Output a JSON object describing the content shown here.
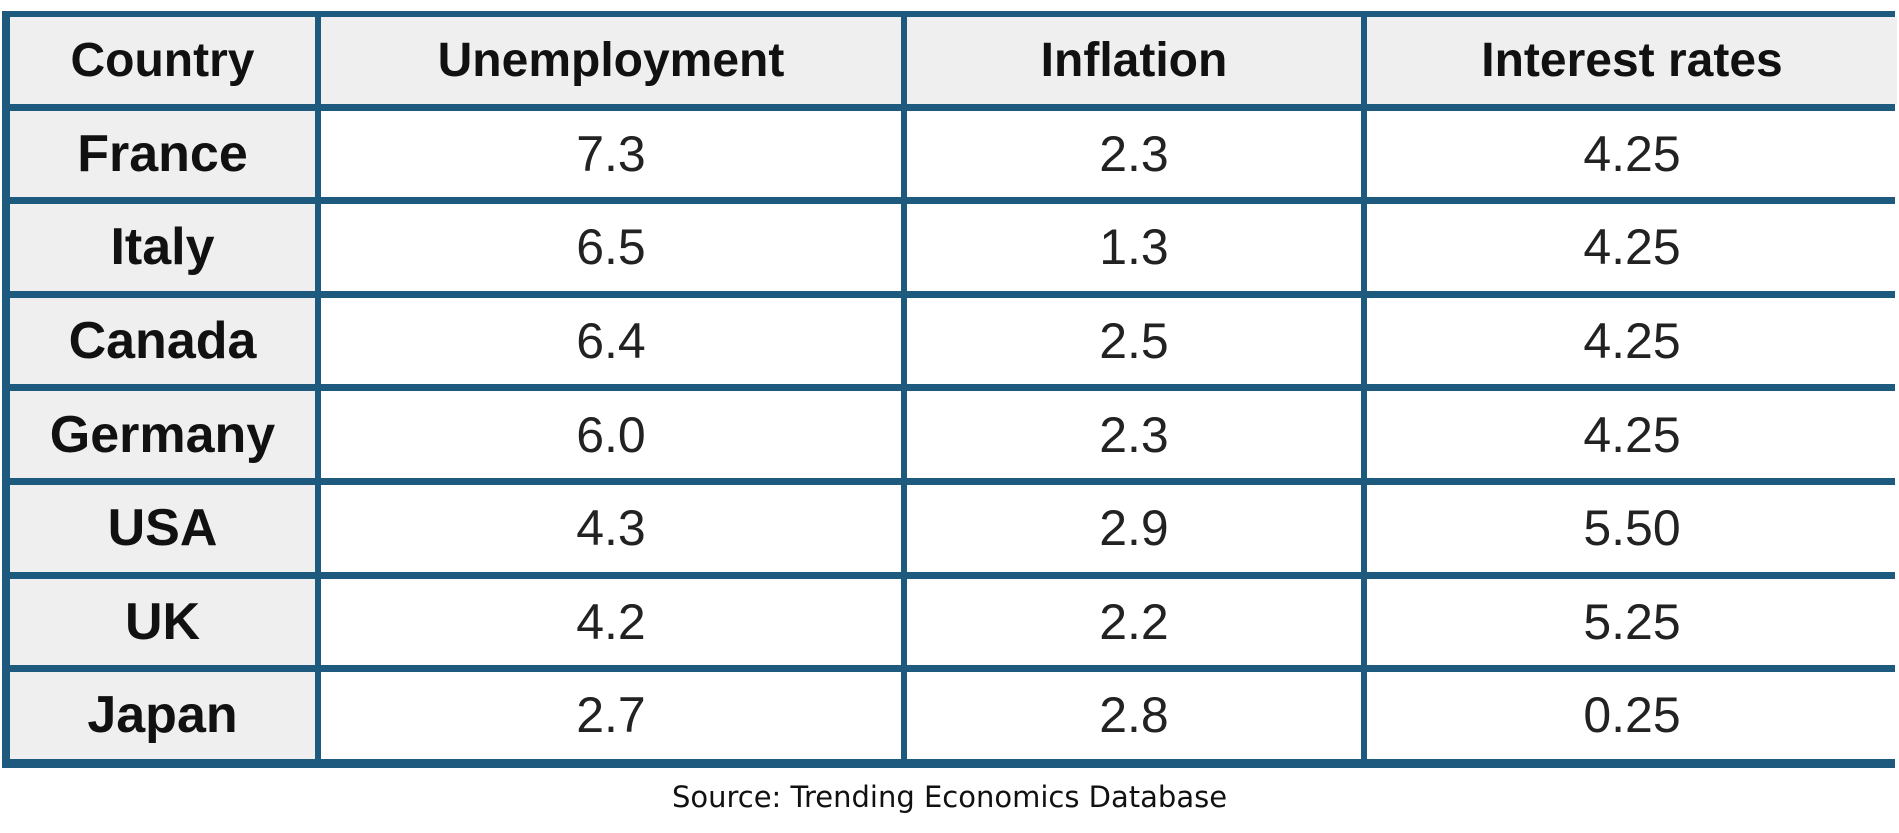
{
  "chart_data": {
    "type": "table",
    "columns": [
      "Country",
      "Unemployment",
      "Inflation",
      "Interest rates"
    ],
    "rows": [
      [
        "France",
        "7.3",
        "2.3",
        "4.25"
      ],
      [
        "Italy",
        "6.5",
        "1.3",
        "4.25"
      ],
      [
        "Canada",
        "6.4",
        "2.5",
        "4.25"
      ],
      [
        "Germany",
        "6.0",
        "2.3",
        "4.25"
      ],
      [
        "USA",
        "4.3",
        "2.9",
        "5.50"
      ],
      [
        "UK",
        "4.2",
        "2.2",
        "5.25"
      ],
      [
        "Japan",
        "2.7",
        "2.8",
        "0.25"
      ]
    ],
    "source": "Source: Trending Economics Database"
  },
  "colors": {
    "border": "#1d5a7e",
    "header_bg": "#efefef",
    "cell_bg": "#ffffff"
  }
}
